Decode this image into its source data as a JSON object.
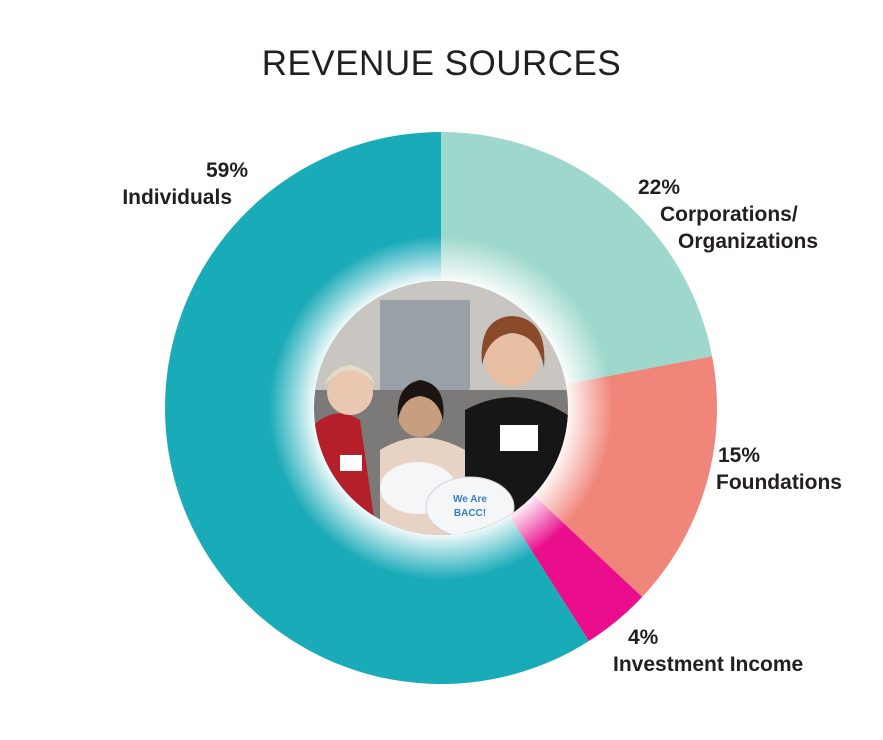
{
  "chart_data": {
    "type": "pie",
    "title": "REVENUE SOURCES",
    "donut": true,
    "slices": [
      {
        "label": "Corporations/ Organizations",
        "label_lines": [
          "Corporations/",
          "Organizations"
        ],
        "value": 22,
        "value_label": "22%",
        "color": "#9ed8cc"
      },
      {
        "label": "Foundations",
        "label_lines": [
          "Foundations"
        ],
        "value": 15,
        "value_label": "15%",
        "color": "#f0857a"
      },
      {
        "label": "Investment Income",
        "label_lines": [
          "Investment Income"
        ],
        "value": 4,
        "value_label": "4%",
        "color": "#ea0d8c"
      },
      {
        "label": "Individuals",
        "label_lines": [
          "Individuals"
        ],
        "value": 59,
        "value_label": "59%",
        "color": "#1aabb9"
      }
    ],
    "center_photo_caption_text": [
      "We Are",
      "BACC!"
    ]
  }
}
